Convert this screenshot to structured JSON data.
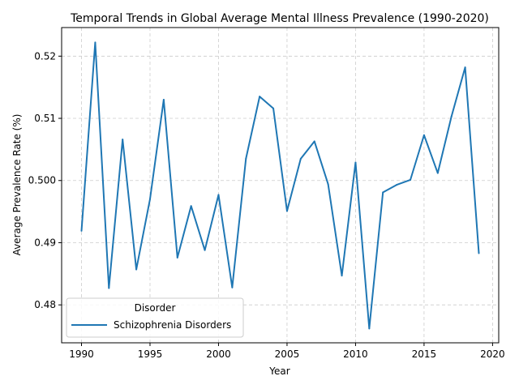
{
  "chart_data": {
    "type": "line",
    "title": "Temporal Trends in Global Average Mental Illness Prevalence (1990-2020)",
    "xlabel": "Year",
    "ylabel": "Average Prevalence Rate (%)",
    "xlim": [
      1988.55,
      2020.45
    ],
    "ylim": [
      0.4739,
      0.5246
    ],
    "xticks": [
      1990,
      1995,
      2000,
      2005,
      2010,
      2015,
      2020
    ],
    "yticks": [
      0.48,
      0.49,
      0.5,
      0.51,
      0.52
    ],
    "ytick_labels": [
      "0.48",
      "0.49",
      "0.500",
      "0.51",
      "0.52"
    ],
    "grid": true,
    "legend": {
      "title": "Disorder",
      "placement": "lower-left"
    },
    "x": [
      1990,
      1991,
      1992,
      1993,
      1994,
      1995,
      1996,
      1997,
      1998,
      1999,
      2000,
      2001,
      2002,
      2003,
      2004,
      2005,
      2006,
      2007,
      2008,
      2009,
      2010,
      2011,
      2012,
      2013,
      2014,
      2015,
      2016,
      2017,
      2018,
      2019
    ],
    "series": [
      {
        "name": "Schizophrenia Disorders",
        "color": "#1f77b4",
        "values": [
          0.4919,
          0.5222,
          0.4827,
          0.5066,
          0.4857,
          0.497,
          0.513,
          0.4876,
          0.4959,
          0.4888,
          0.4977,
          0.4828,
          0.5035,
          0.5135,
          0.5116,
          0.4951,
          0.5035,
          0.5063,
          0.4994,
          0.4847,
          0.5029,
          0.4762,
          0.4981,
          0.4993,
          0.5001,
          0.5073,
          0.5012,
          0.5103,
          0.5182,
          0.4883
        ]
      }
    ]
  }
}
